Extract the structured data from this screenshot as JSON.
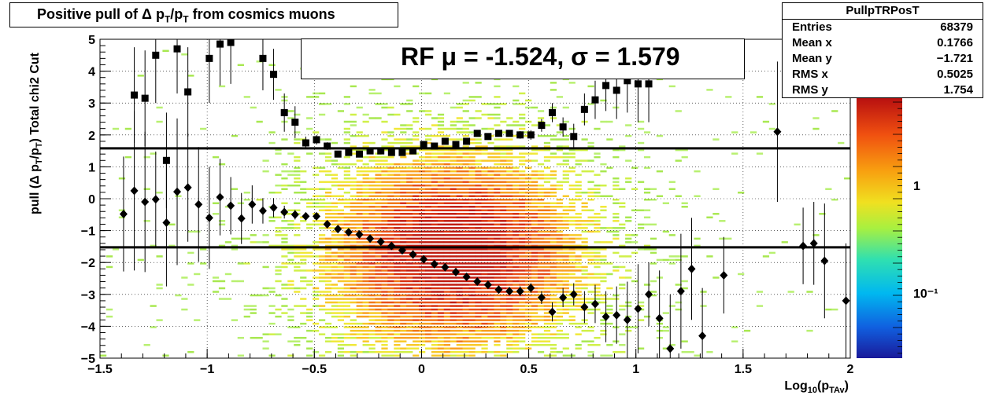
{
  "title": {
    "pre": "Positive pull of Δ p",
    "sub1": "T",
    "mid": "/p",
    "sub2": "T",
    "post": " from cosmics muons"
  },
  "ylabel": {
    "pre": "pull (Δ p",
    "sub1": "T",
    "mid": "/p",
    "sub2": "T",
    "post": ")  Total chi2 Cut"
  },
  "xlabel": {
    "pre": "Log",
    "sub1": "10",
    "mid": "(p",
    "sub2": "TAv",
    "post": ")"
  },
  "stats": {
    "name": "PullpTRPosT",
    "rows": [
      {
        "label": "Entries",
        "value": "68379"
      },
      {
        "label": "Mean x",
        "value": "0.1766"
      },
      {
        "label": "Mean y",
        "value": "−1.721"
      },
      {
        "label": "RMS x",
        "value": "0.5025"
      },
      {
        "label": "RMS y",
        "value": "1.754"
      }
    ]
  },
  "legend": {
    "text": "RF μ = -1.524, σ =   1.579"
  },
  "colors": {
    "mean_marker": "#000000",
    "sigma_marker": "#000000",
    "hline": "#000000"
  },
  "chart_data": {
    "type": "heatmap",
    "xlim": [
      -1.5,
      2
    ],
    "ylim": [
      -5,
      5
    ],
    "x_ticks": [
      "−1.5",
      "−1",
      "−0.5",
      "0",
      "0.5",
      "1",
      "1.5",
      "2"
    ],
    "y_ticks": [
      "−5",
      "−4",
      "−3",
      "−2",
      "−1",
      "0",
      "1",
      "2",
      "3",
      "4",
      "5"
    ],
    "colorbar_ticks": [
      "1",
      "10⁻¹"
    ],
    "grid": true,
    "hlines": [
      1.579,
      -1.524
    ],
    "series": [
      {
        "marker": "diamond",
        "points": [
          [
            -1.39,
            -0.48,
            1.8
          ],
          [
            -1.34,
            0.25,
            2.5
          ],
          [
            -1.29,
            -0.1,
            2.2
          ],
          [
            -1.24,
            -0.02,
            1.5
          ],
          [
            -1.19,
            -0.75,
            2.0
          ],
          [
            -1.14,
            0.22,
            2.3
          ],
          [
            -1.09,
            0.35,
            1.7
          ],
          [
            -1.04,
            -0.18,
            1.8
          ],
          [
            -0.99,
            -0.6,
            1.6
          ],
          [
            -0.94,
            0.05,
            1.2
          ],
          [
            -0.89,
            -0.22,
            0.9
          ],
          [
            -0.84,
            -0.62,
            0.8
          ],
          [
            -0.79,
            -0.18,
            0.6
          ],
          [
            -0.74,
            -0.38,
            0.4
          ],
          [
            -0.69,
            -0.28,
            0.3
          ],
          [
            -0.64,
            -0.42,
            0.2
          ],
          [
            -0.59,
            -0.5,
            0.15
          ],
          [
            -0.54,
            -0.55,
            0.1
          ],
          [
            -0.49,
            -0.55,
            0.1
          ],
          [
            -0.44,
            -0.8,
            0.1
          ],
          [
            -0.39,
            -0.95,
            0.1
          ],
          [
            -0.34,
            -1.05,
            0.1
          ],
          [
            -0.29,
            -1.12,
            0.1
          ],
          [
            -0.24,
            -1.25,
            0.1
          ],
          [
            -0.19,
            -1.35,
            0.1
          ],
          [
            -0.14,
            -1.48,
            0.1
          ],
          [
            -0.09,
            -1.62,
            0.1
          ],
          [
            -0.04,
            -1.75,
            0.1
          ],
          [
            0.01,
            -1.9,
            0.1
          ],
          [
            0.06,
            -2.05,
            0.1
          ],
          [
            0.11,
            -2.15,
            0.1
          ],
          [
            0.16,
            -2.3,
            0.1
          ],
          [
            0.21,
            -2.45,
            0.1
          ],
          [
            0.26,
            -2.6,
            0.12
          ],
          [
            0.31,
            -2.7,
            0.12
          ],
          [
            0.36,
            -2.85,
            0.12
          ],
          [
            0.41,
            -2.9,
            0.12
          ],
          [
            0.46,
            -2.9,
            0.15
          ],
          [
            0.51,
            -2.8,
            0.15
          ],
          [
            0.56,
            -3.1,
            0.2
          ],
          [
            0.61,
            -3.55,
            0.3
          ],
          [
            0.66,
            -3.1,
            0.3
          ],
          [
            0.71,
            -3.0,
            0.35
          ],
          [
            0.76,
            -3.4,
            0.5
          ],
          [
            0.81,
            -3.3,
            0.6
          ],
          [
            0.86,
            -3.7,
            0.8
          ],
          [
            0.91,
            -3.65,
            0.9
          ],
          [
            0.96,
            -3.8,
            1.2
          ],
          [
            1.01,
            -3.45,
            1.4
          ],
          [
            1.06,
            -3.0,
            1.0
          ],
          [
            1.11,
            -3.75,
            1.5
          ],
          [
            1.16,
            -4.7,
            1.7
          ],
          [
            1.21,
            -2.9,
            1.8
          ],
          [
            1.26,
            -2.2,
            1.6
          ],
          [
            1.31,
            -4.3,
            1.5
          ],
          [
            1.41,
            -2.4,
            1.2
          ],
          [
            1.66,
            2.1,
            2.2
          ],
          [
            1.78,
            -1.48,
            1.2
          ],
          [
            1.83,
            -1.4,
            1.3
          ],
          [
            1.88,
            -1.95,
            1.8
          ],
          [
            1.98,
            -3.2,
            1.8
          ]
        ]
      },
      {
        "marker": "square",
        "points": [
          [
            -1.34,
            3.25,
            1.5
          ],
          [
            -1.29,
            3.15,
            1.5
          ],
          [
            -1.24,
            4.5,
            1.5
          ],
          [
            -1.19,
            1.2,
            1.5
          ],
          [
            -1.14,
            4.7,
            1.4
          ],
          [
            -1.09,
            3.35,
            1.4
          ],
          [
            -0.99,
            4.4,
            1.4
          ],
          [
            -0.94,
            4.85,
            1.3
          ],
          [
            -0.89,
            4.9,
            1.3
          ],
          [
            -0.74,
            4.4,
            1.0
          ],
          [
            -0.69,
            3.9,
            0.8
          ],
          [
            -0.64,
            2.7,
            0.6
          ],
          [
            -0.59,
            2.4,
            0.5
          ],
          [
            -0.54,
            1.75,
            0.2
          ],
          [
            -0.49,
            1.85,
            0.15
          ],
          [
            -0.44,
            1.65,
            0.12
          ],
          [
            -0.39,
            1.4,
            0.1
          ],
          [
            -0.34,
            1.45,
            0.1
          ],
          [
            -0.29,
            1.4,
            0.1
          ],
          [
            -0.24,
            1.5,
            0.1
          ],
          [
            -0.19,
            1.5,
            0.1
          ],
          [
            -0.14,
            1.45,
            0.1
          ],
          [
            -0.09,
            1.45,
            0.1
          ],
          [
            -0.04,
            1.5,
            0.1
          ],
          [
            0.01,
            1.7,
            0.1
          ],
          [
            0.06,
            1.65,
            0.1
          ],
          [
            0.11,
            1.8,
            0.1
          ],
          [
            0.16,
            1.7,
            0.1
          ],
          [
            0.21,
            1.8,
            0.1
          ],
          [
            0.26,
            2.05,
            0.1
          ],
          [
            0.31,
            1.95,
            0.1
          ],
          [
            0.36,
            2.05,
            0.1
          ],
          [
            0.41,
            2.05,
            0.1
          ],
          [
            0.46,
            2.0,
            0.12
          ],
          [
            0.51,
            2.0,
            0.15
          ],
          [
            0.56,
            2.3,
            0.2
          ],
          [
            0.61,
            2.7,
            0.3
          ],
          [
            0.66,
            2.25,
            0.3
          ],
          [
            0.71,
            1.95,
            0.4
          ],
          [
            0.76,
            2.8,
            0.5
          ],
          [
            0.81,
            3.1,
            0.6
          ],
          [
            0.86,
            3.55,
            0.8
          ],
          [
            0.91,
            3.4,
            0.9
          ],
          [
            0.96,
            3.7,
            1.0
          ],
          [
            1.01,
            3.6,
            1.2
          ],
          [
            1.06,
            3.6,
            1.2
          ]
        ]
      }
    ]
  }
}
